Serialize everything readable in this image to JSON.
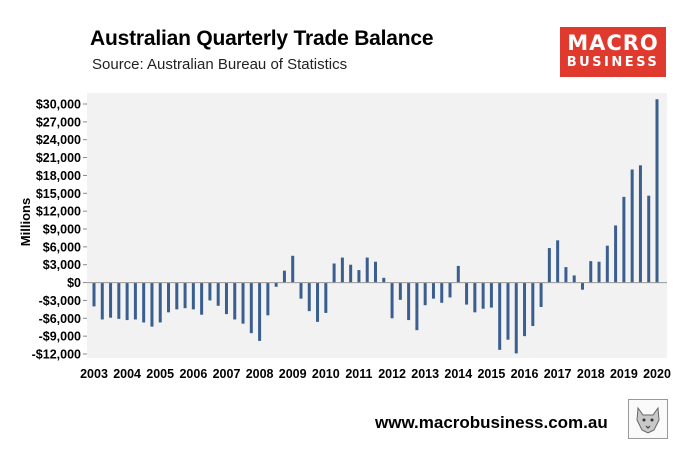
{
  "header": {
    "title": "Australian Quarterly Trade Balance",
    "subtitle": "Source: Australian Bureau of Statistics"
  },
  "logo": {
    "line1": "MACRO",
    "line2": "BUSINESS"
  },
  "footer": {
    "url": "www.macrobusiness.com.au"
  },
  "colors": {
    "bar": "#3a5f8f",
    "logo_bg": "#e03a2e",
    "plot_bg": "#f2f2f2"
  },
  "icons": {
    "corner_image": "wolf-logo-icon"
  },
  "chart_data": {
    "type": "bar",
    "title": "Australian Quarterly Trade Balance",
    "xlabel": "",
    "ylabel": "Millions",
    "ylim": [
      -12000,
      31000
    ],
    "yticks": [
      30000,
      27000,
      24000,
      21000,
      18000,
      15000,
      12000,
      9000,
      6000,
      3000,
      0,
      -3000,
      -6000,
      -9000,
      -12000
    ],
    "ytick_labels": [
      "$30,000",
      "$27,000",
      "$24,000",
      "$21,000",
      "$18,000",
      "$15,000",
      "$12,000",
      "$9,000",
      "$6,000",
      "$3,000",
      "$0",
      "-$3,000",
      "-$6,000",
      "-$9,000",
      "-$12,000"
    ],
    "x_tick_labels": [
      "2003",
      "2004",
      "2005",
      "2006",
      "2007",
      "2008",
      "2009",
      "2010",
      "2011",
      "2012",
      "2013",
      "2014",
      "2015",
      "2016",
      "2017",
      "2018",
      "2019",
      "2020"
    ],
    "quarters_per_year": 4,
    "grid": false,
    "series": [
      {
        "values": [
          -4000,
          -6200,
          -5900,
          -6100,
          -6300,
          -6200,
          -6700,
          -7400,
          -6700,
          -5000,
          -4500,
          -4300,
          -4500,
          -5400,
          -3000,
          -3900,
          -5300,
          -6200,
          -6900,
          -8500,
          -9800,
          -5500,
          -700,
          2000,
          4500,
          -2700,
          -4800,
          -6600,
          -5100,
          3200,
          4200,
          3000,
          2100,
          4200,
          3500,
          800,
          -6000,
          -2900,
          -6300,
          -8000,
          -3800,
          -2700,
          -3400,
          -2500,
          2800,
          -3700,
          -5000,
          -4400,
          -4200,
          -11300,
          -9600,
          -11900,
          -9000,
          -7300,
          -4100,
          5800,
          7100,
          2600,
          1200,
          -1200,
          3600,
          3500,
          6200,
          9600,
          14400,
          19000,
          19700,
          14600,
          30800
        ]
      }
    ]
  }
}
